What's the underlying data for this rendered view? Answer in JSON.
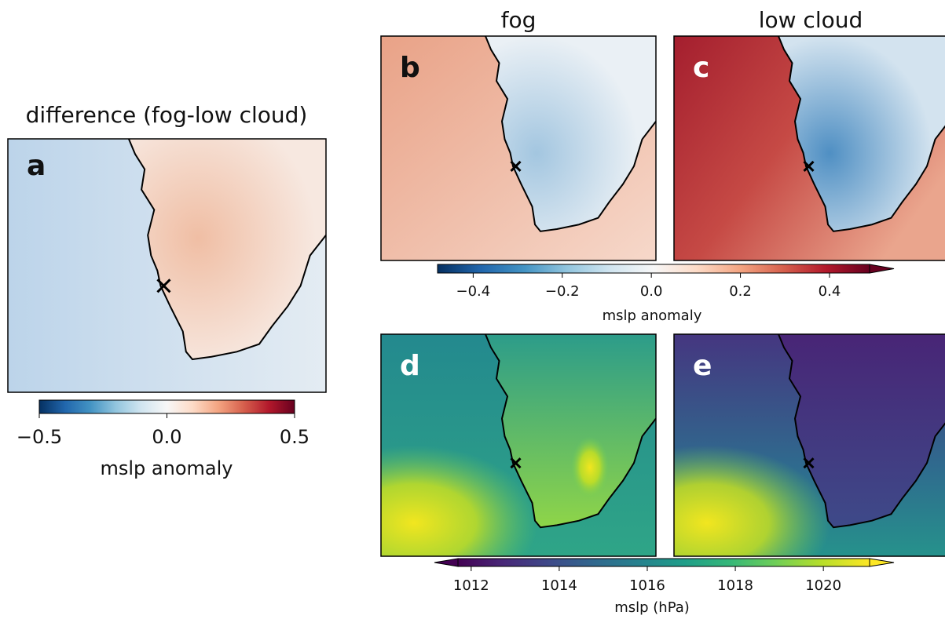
{
  "panels": [
    {
      "letter": "a",
      "title": "difference (fog-low cloud)"
    },
    {
      "letter": "b",
      "title": "fog"
    },
    {
      "letter": "c",
      "title": "low cloud"
    },
    {
      "letter": "d"
    },
    {
      "letter": "e"
    }
  ],
  "colorbars": [
    {
      "label": "mslp anomaly",
      "lim": [
        -0.5,
        0.5
      ],
      "ticks": [
        {
          "value": -0.5,
          "label": "−0.5"
        },
        {
          "value": 0,
          "label": "0.0"
        },
        0.5
      ]
    },
    {
      "label": "mslp anomaly",
      "lim": [
        -0.48,
        0.49
      ],
      "ticks": [
        {
          "value": -0.4,
          "label": "−0.4"
        },
        {
          "value": -0.2,
          "label": "−0.2"
        },
        {
          "value": 0,
          "label": "0.0"
        },
        0.2,
        0.4
      ]
    },
    {
      "label": "mslp (hPa)",
      "lim": [
        1011.7,
        1021.05
      ],
      "ticks": [
        1012,
        1014,
        1016,
        1018,
        1020
      ]
    }
  ]
}
